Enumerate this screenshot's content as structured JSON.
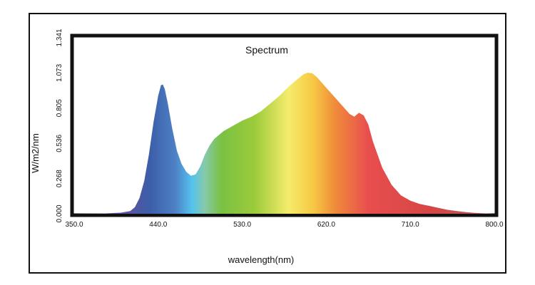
{
  "chart_data": {
    "type": "area",
    "title": "Spectrum",
    "xlabel": "wavelength(nm)",
    "ylabel": "W/m2/nm",
    "xlim": [
      350.0,
      800.0
    ],
    "ylim": [
      0.0,
      1.341
    ],
    "x_ticks": [
      "350.0",
      "440.0",
      "530.0",
      "620.0",
      "710.0",
      "800.0"
    ],
    "y_ticks": [
      "0.000",
      "0.268",
      "0.536",
      "0.805",
      "1.073",
      "1.341"
    ],
    "x": [
      350,
      380,
      400,
      410,
      415,
      420,
      425,
      430,
      435,
      440,
      443,
      445,
      447,
      450,
      455,
      460,
      465,
      470,
      475,
      480,
      485,
      490,
      495,
      500,
      510,
      520,
      530,
      540,
      550,
      560,
      570,
      580,
      590,
      595,
      600,
      605,
      610,
      615,
      620,
      630,
      640,
      645,
      650,
      655,
      660,
      665,
      670,
      680,
      690,
      700,
      710,
      720,
      730,
      740,
      750,
      760,
      770,
      780,
      800
    ],
    "values": [
      0.0,
      0.002,
      0.008,
      0.02,
      0.05,
      0.12,
      0.25,
      0.45,
      0.7,
      0.9,
      0.98,
      0.985,
      0.95,
      0.85,
      0.65,
      0.48,
      0.38,
      0.32,
      0.29,
      0.3,
      0.36,
      0.45,
      0.52,
      0.57,
      0.63,
      0.67,
      0.71,
      0.74,
      0.78,
      0.84,
      0.9,
      0.97,
      1.03,
      1.06,
      1.075,
      1.07,
      1.04,
      1.0,
      0.96,
      0.88,
      0.8,
      0.76,
      0.74,
      0.77,
      0.75,
      0.68,
      0.55,
      0.35,
      0.22,
      0.14,
      0.1,
      0.075,
      0.06,
      0.045,
      0.03,
      0.02,
      0.012,
      0.006,
      0.0
    ]
  }
}
